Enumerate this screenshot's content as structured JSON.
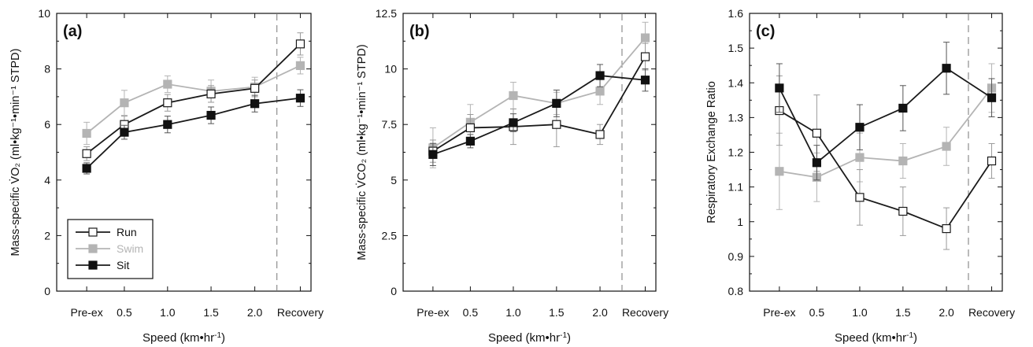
{
  "chart_data": [
    {
      "type": "line",
      "panel_label": "(a)",
      "categories": [
        "Pre-ex",
        "0.5",
        "1.0",
        "1.5",
        "2.0",
        "Recovery"
      ],
      "xlabel": "Speed (km•hr",
      "xlabel_sup": "-1",
      "xlabel_tail": ")",
      "ylabel": "Mass-specific V̇O₂ (ml•kg⁻¹•min⁻¹ STPD)",
      "ylim": [
        0,
        10
      ],
      "yticks": [
        0,
        2,
        4,
        6,
        8,
        10
      ],
      "ytick_labels": [
        "0",
        "2",
        "4",
        "6",
        "8",
        "10"
      ],
      "recovery_divider": true,
      "series": [
        {
          "name": "Run",
          "values": [
            4.95,
            6.0,
            6.78,
            7.1,
            7.3,
            8.9
          ],
          "err": [
            0.25,
            0.3,
            0.3,
            0.3,
            0.3,
            0.4
          ]
        },
        {
          "name": "Swim",
          "values": [
            5.68,
            6.78,
            7.45,
            7.2,
            7.35,
            8.12
          ],
          "err": [
            0.4,
            0.45,
            0.3,
            0.4,
            0.35,
            0.3
          ]
        },
        {
          "name": "Sit",
          "values": [
            4.42,
            5.72,
            6.0,
            6.33,
            6.75,
            6.95
          ],
          "err": [
            0.2,
            0.25,
            0.3,
            0.3,
            0.3,
            0.3
          ]
        }
      ],
      "legend": {
        "position": "bottom-left"
      }
    },
    {
      "type": "line",
      "panel_label": "(b)",
      "categories": [
        "Pre-ex",
        "0.5",
        "1.0",
        "1.5",
        "2.0",
        "Recovery"
      ],
      "xlabel": "Speed (km•hr",
      "xlabel_sup": "-1",
      "xlabel_tail": ")",
      "ylabel": "Mass-specific V̇CO₂ (ml•kg⁻¹•min⁻¹ STPD)",
      "ylim": [
        0,
        12.5
      ],
      "yticks": [
        0,
        2.5,
        5,
        7.5,
        10,
        12.5
      ],
      "ytick_labels": [
        "0",
        "2.5",
        "5",
        "7.5",
        "10",
        "12.5"
      ],
      "recovery_divider": true,
      "series": [
        {
          "name": "Run",
          "values": [
            6.3,
            7.35,
            7.4,
            7.5,
            7.05,
            10.55
          ],
          "err": [
            0.5,
            0.6,
            0.8,
            1.0,
            0.45,
            0.6
          ]
        },
        {
          "name": "Swim",
          "values": [
            6.45,
            7.6,
            8.8,
            8.45,
            9.0,
            11.4
          ],
          "err": [
            0.9,
            0.8,
            0.6,
            0.5,
            0.6,
            0.7
          ]
        },
        {
          "name": "Sit",
          "values": [
            6.15,
            6.75,
            7.58,
            8.45,
            9.7,
            9.5
          ],
          "err": [
            0.5,
            0.3,
            0.4,
            0.6,
            0.5,
            0.5
          ]
        }
      ]
    },
    {
      "type": "line",
      "panel_label": "(c)",
      "categories": [
        "Pre-ex",
        "0.5",
        "1.0",
        "1.5",
        "2.0",
        "Recovery"
      ],
      "xlabel": "Speed (km•hr",
      "xlabel_sup": "-1",
      "xlabel_tail": ")",
      "ylabel": "Respiratory Exchange Ratio",
      "ylim": [
        0.8,
        1.6
      ],
      "yticks": [
        0.8,
        0.9,
        1.0,
        1.1,
        1.2,
        1.3,
        1.4,
        1.5,
        1.6
      ],
      "ytick_labels": [
        "0.8",
        "0.9",
        "1",
        "1.1",
        "1.2",
        "1.3",
        "1.4",
        "1.5",
        "1.6"
      ],
      "recovery_divider": true,
      "series": [
        {
          "name": "Run",
          "values": [
            1.32,
            1.255,
            1.07,
            1.03,
            0.98,
            1.175
          ],
          "err": [
            0.1,
            0.11,
            0.08,
            0.07,
            0.06,
            0.05
          ]
        },
        {
          "name": "Swim",
          "values": [
            1.145,
            1.128,
            1.185,
            1.175,
            1.217,
            1.385
          ],
          "err": [
            0.11,
            0.07,
            0.07,
            0.05,
            0.055,
            0.07
          ]
        },
        {
          "name": "Sit",
          "values": [
            1.385,
            1.17,
            1.272,
            1.327,
            1.442,
            1.357
          ],
          "err": [
            0.07,
            0.05,
            0.065,
            0.065,
            0.075,
            0.055
          ]
        }
      ]
    }
  ],
  "series_styles": {
    "Run": {
      "line": "#1a1a1a",
      "fill": "#ffffff",
      "stroke": "#1a1a1a",
      "err": "#9a9a9a"
    },
    "Swim": {
      "line": "#b4b4b4",
      "fill": "#b4b4b4",
      "stroke": "#b4b4b4",
      "err": "#b4b4b4"
    },
    "Sit": {
      "line": "#1a1a1a",
      "fill": "#111111",
      "stroke": "#111111",
      "err": "#555555"
    }
  }
}
